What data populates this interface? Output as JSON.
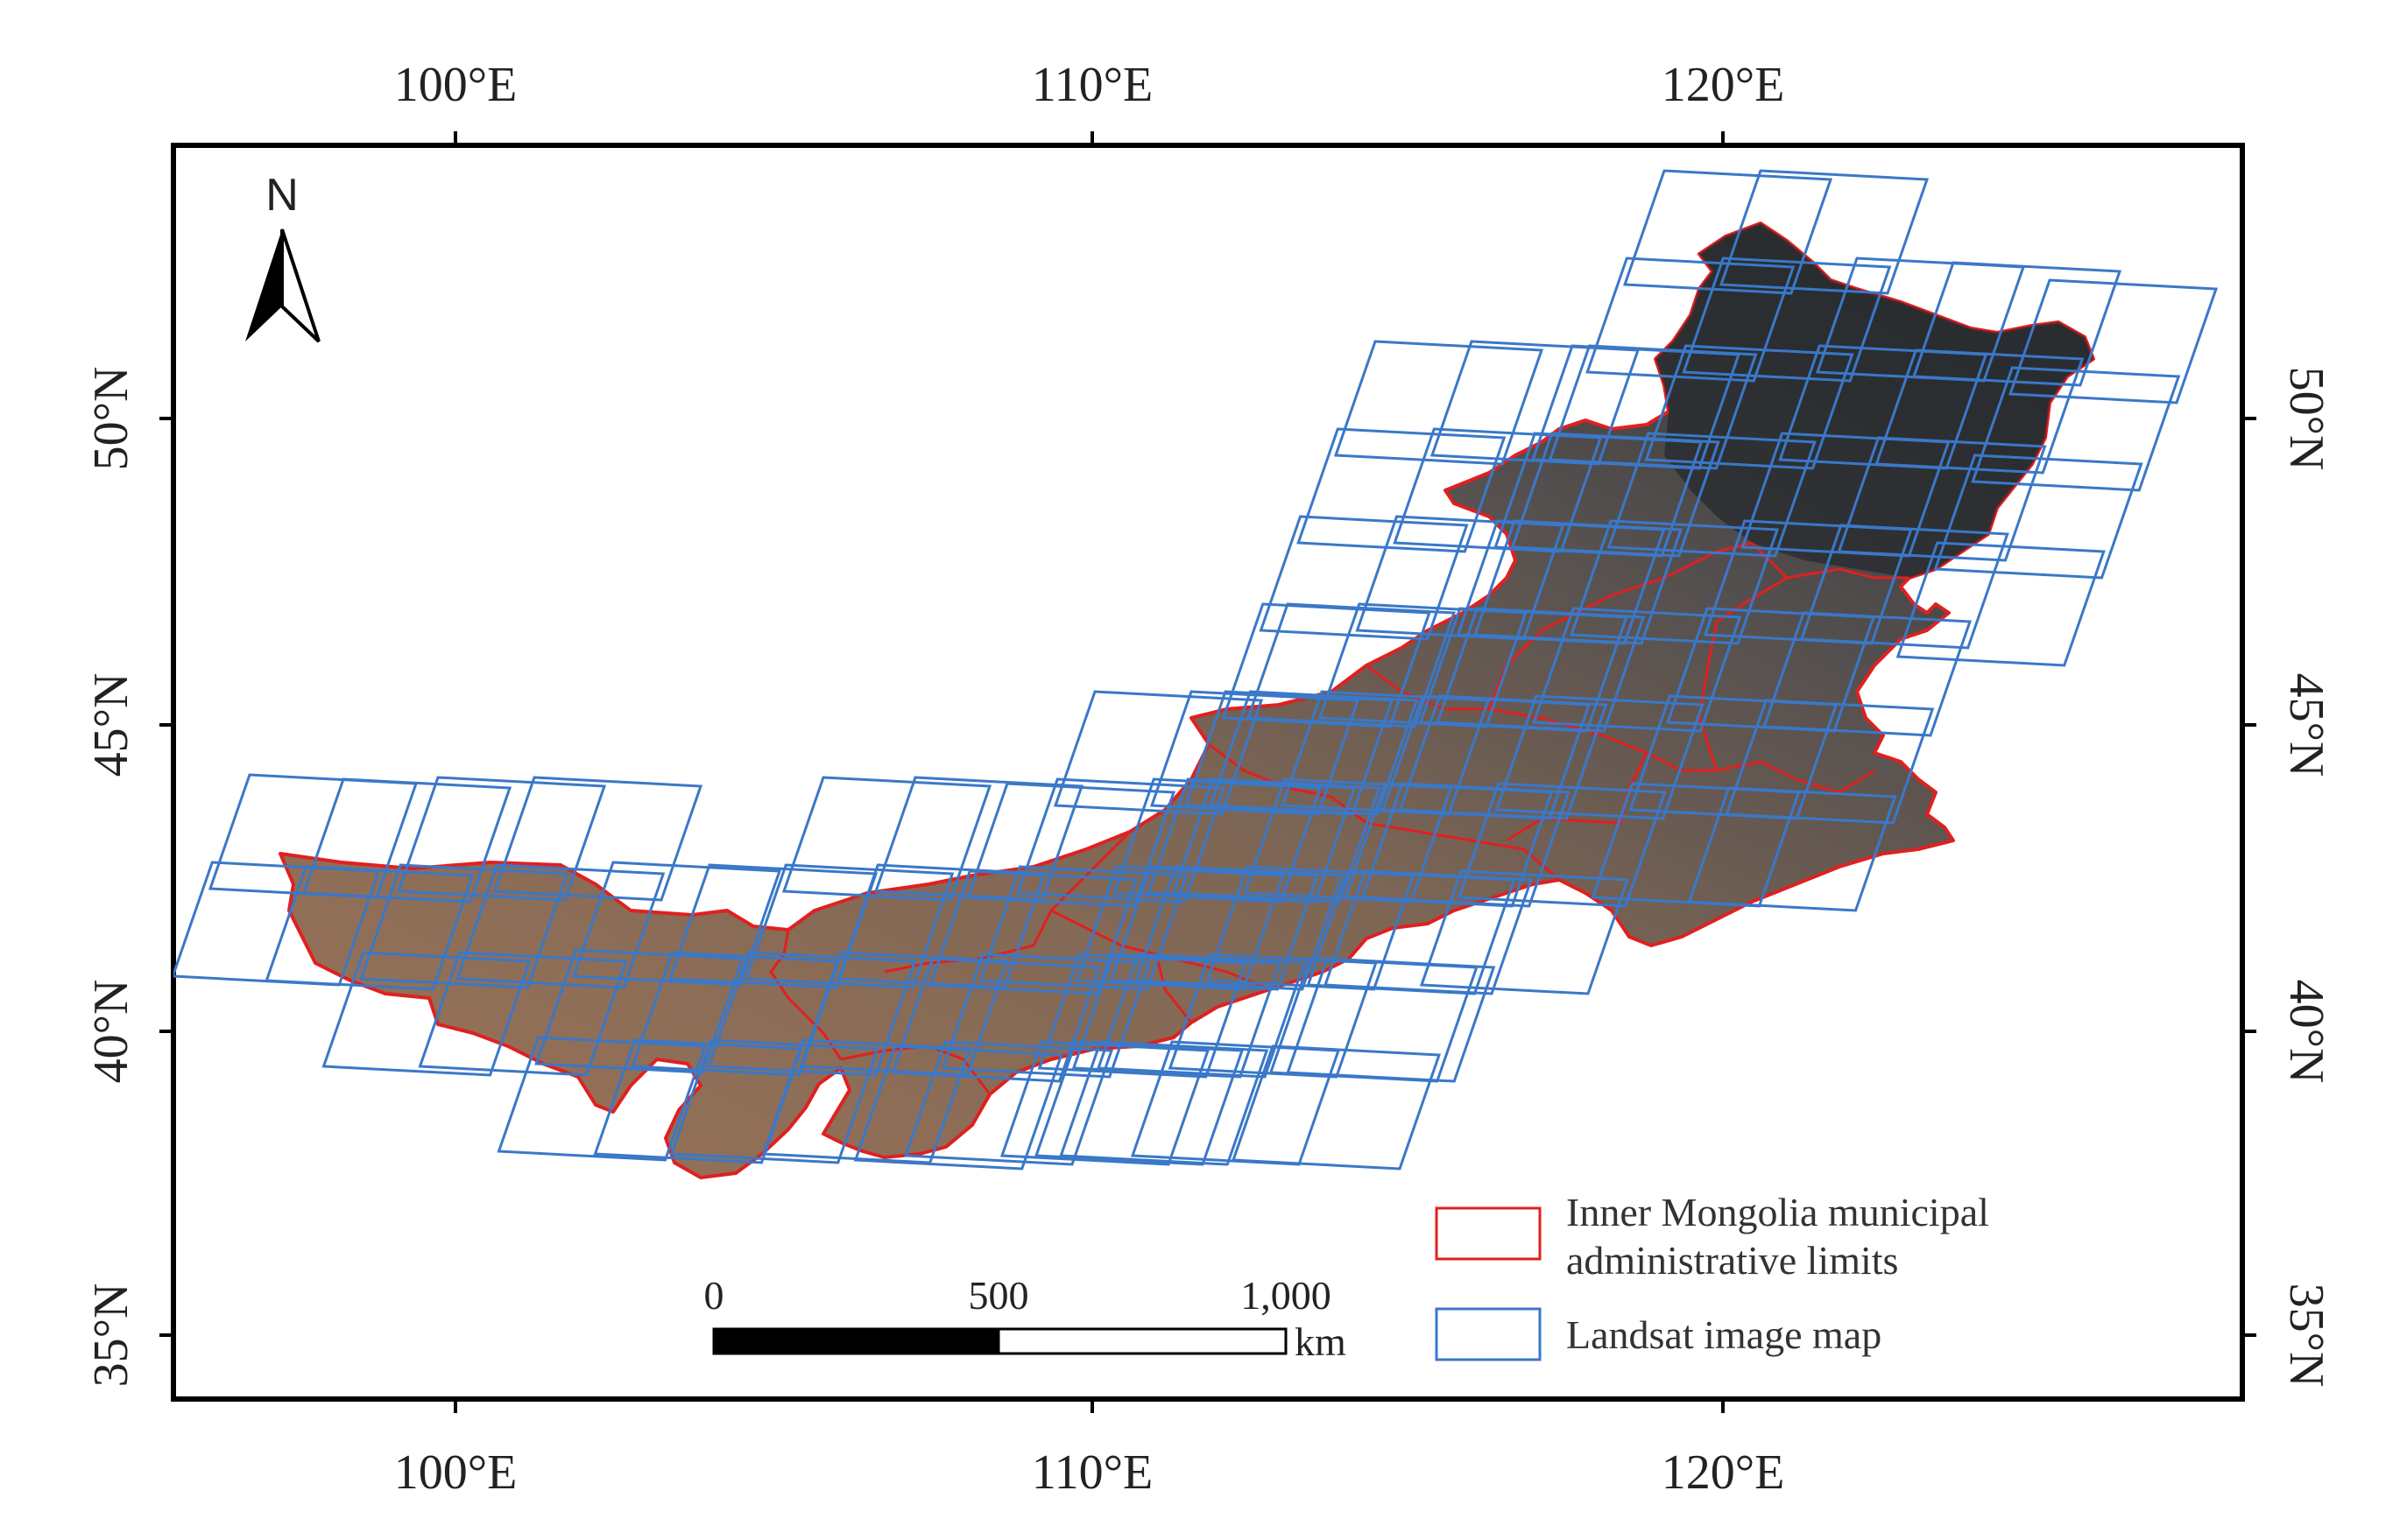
{
  "map": {
    "lon_ticks": [
      "100°E",
      "110°E",
      "120°E"
    ],
    "lat_ticks": [
      "50°N",
      "45°N",
      "40°N",
      "35°N"
    ],
    "north_label": "N",
    "colors": {
      "admin_boundary": "#e02020",
      "landsat_frame": "#3a78c8",
      "frame": "#000000",
      "terrain_desert": "#8a6a52",
      "terrain_forest": "#2c2f34"
    }
  },
  "scale_bar": {
    "labels": [
      "0",
      "500",
      "1,000"
    ],
    "unit": "km"
  },
  "legend": {
    "items": [
      {
        "label_line1": "Inner Mongolia municipal",
        "label_line2": "administrative  limits",
        "swatch_color": "#e02020"
      },
      {
        "label_line1": "Landsat image map",
        "label_line2": "",
        "swatch_color": "#3a78c8"
      }
    ]
  }
}
